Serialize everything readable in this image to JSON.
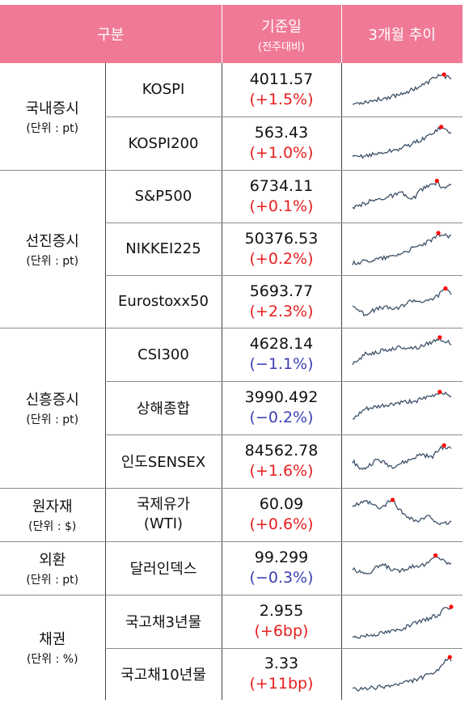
{
  "header": {
    "category": "구분",
    "value_title": "기준일",
    "value_subtitle": "(전주대비)",
    "trend_title": "3개월 추이"
  },
  "colors": {
    "header_bg": "#f07a96",
    "up": "#e61e1e",
    "down": "#3b3fb3",
    "line": "#3c5068",
    "peak_marker": "#ff0000"
  },
  "groups": [
    {
      "name": "국내증시",
      "unit": "(단위 : pt)"
    },
    {
      "name": "선진증시",
      "unit": "(단위 : pt)"
    },
    {
      "name": "신흥증시",
      "unit": "(단위 : pt)"
    },
    {
      "name": "원자재",
      "unit": "(단위 : $)"
    },
    {
      "name": "외환",
      "unit": "(단위 : pt)"
    },
    {
      "name": "채권",
      "unit": "(단위 : %)"
    }
  ],
  "rows": [
    {
      "name": "KOSPI",
      "value": "4011.57",
      "change": "(+1.5%)",
      "dir": "up"
    },
    {
      "name": "KOSPI200",
      "value": "563.43",
      "change": "(+1.0%)",
      "dir": "up"
    },
    {
      "name": "S&P500",
      "value": "6734.11",
      "change": "(+0.1%)",
      "dir": "up"
    },
    {
      "name": "NIKKEI225",
      "value": "50376.53",
      "change": "(+0.2%)",
      "dir": "up"
    },
    {
      "name": "Eurostoxx50",
      "value": "5693.77",
      "change": "(+2.3%)",
      "dir": "up"
    },
    {
      "name": "CSI300",
      "value": "4628.14",
      "change": "(−1.1%)",
      "dir": "down"
    },
    {
      "name": "상해종합",
      "value": "3990.492",
      "change": "(−0.2%)",
      "dir": "down"
    },
    {
      "name": "인도SENSEX",
      "value": "84562.78",
      "change": "(+1.6%)",
      "dir": "up"
    },
    {
      "name": "국제유가",
      "name2": "(WTI)",
      "value": "60.09",
      "change": "(+0.6%)",
      "dir": "up"
    },
    {
      "name": "달러인덱스",
      "value": "99.299",
      "change": "(−0.3%)",
      "dir": "down"
    },
    {
      "name": "국고채3년물",
      "value": "2.955",
      "change": "(+6bp)",
      "dir": "up"
    },
    {
      "name": "국고채10년물",
      "value": "3.33",
      "change": "(+11bp)",
      "dir": "up"
    }
  ]
}
